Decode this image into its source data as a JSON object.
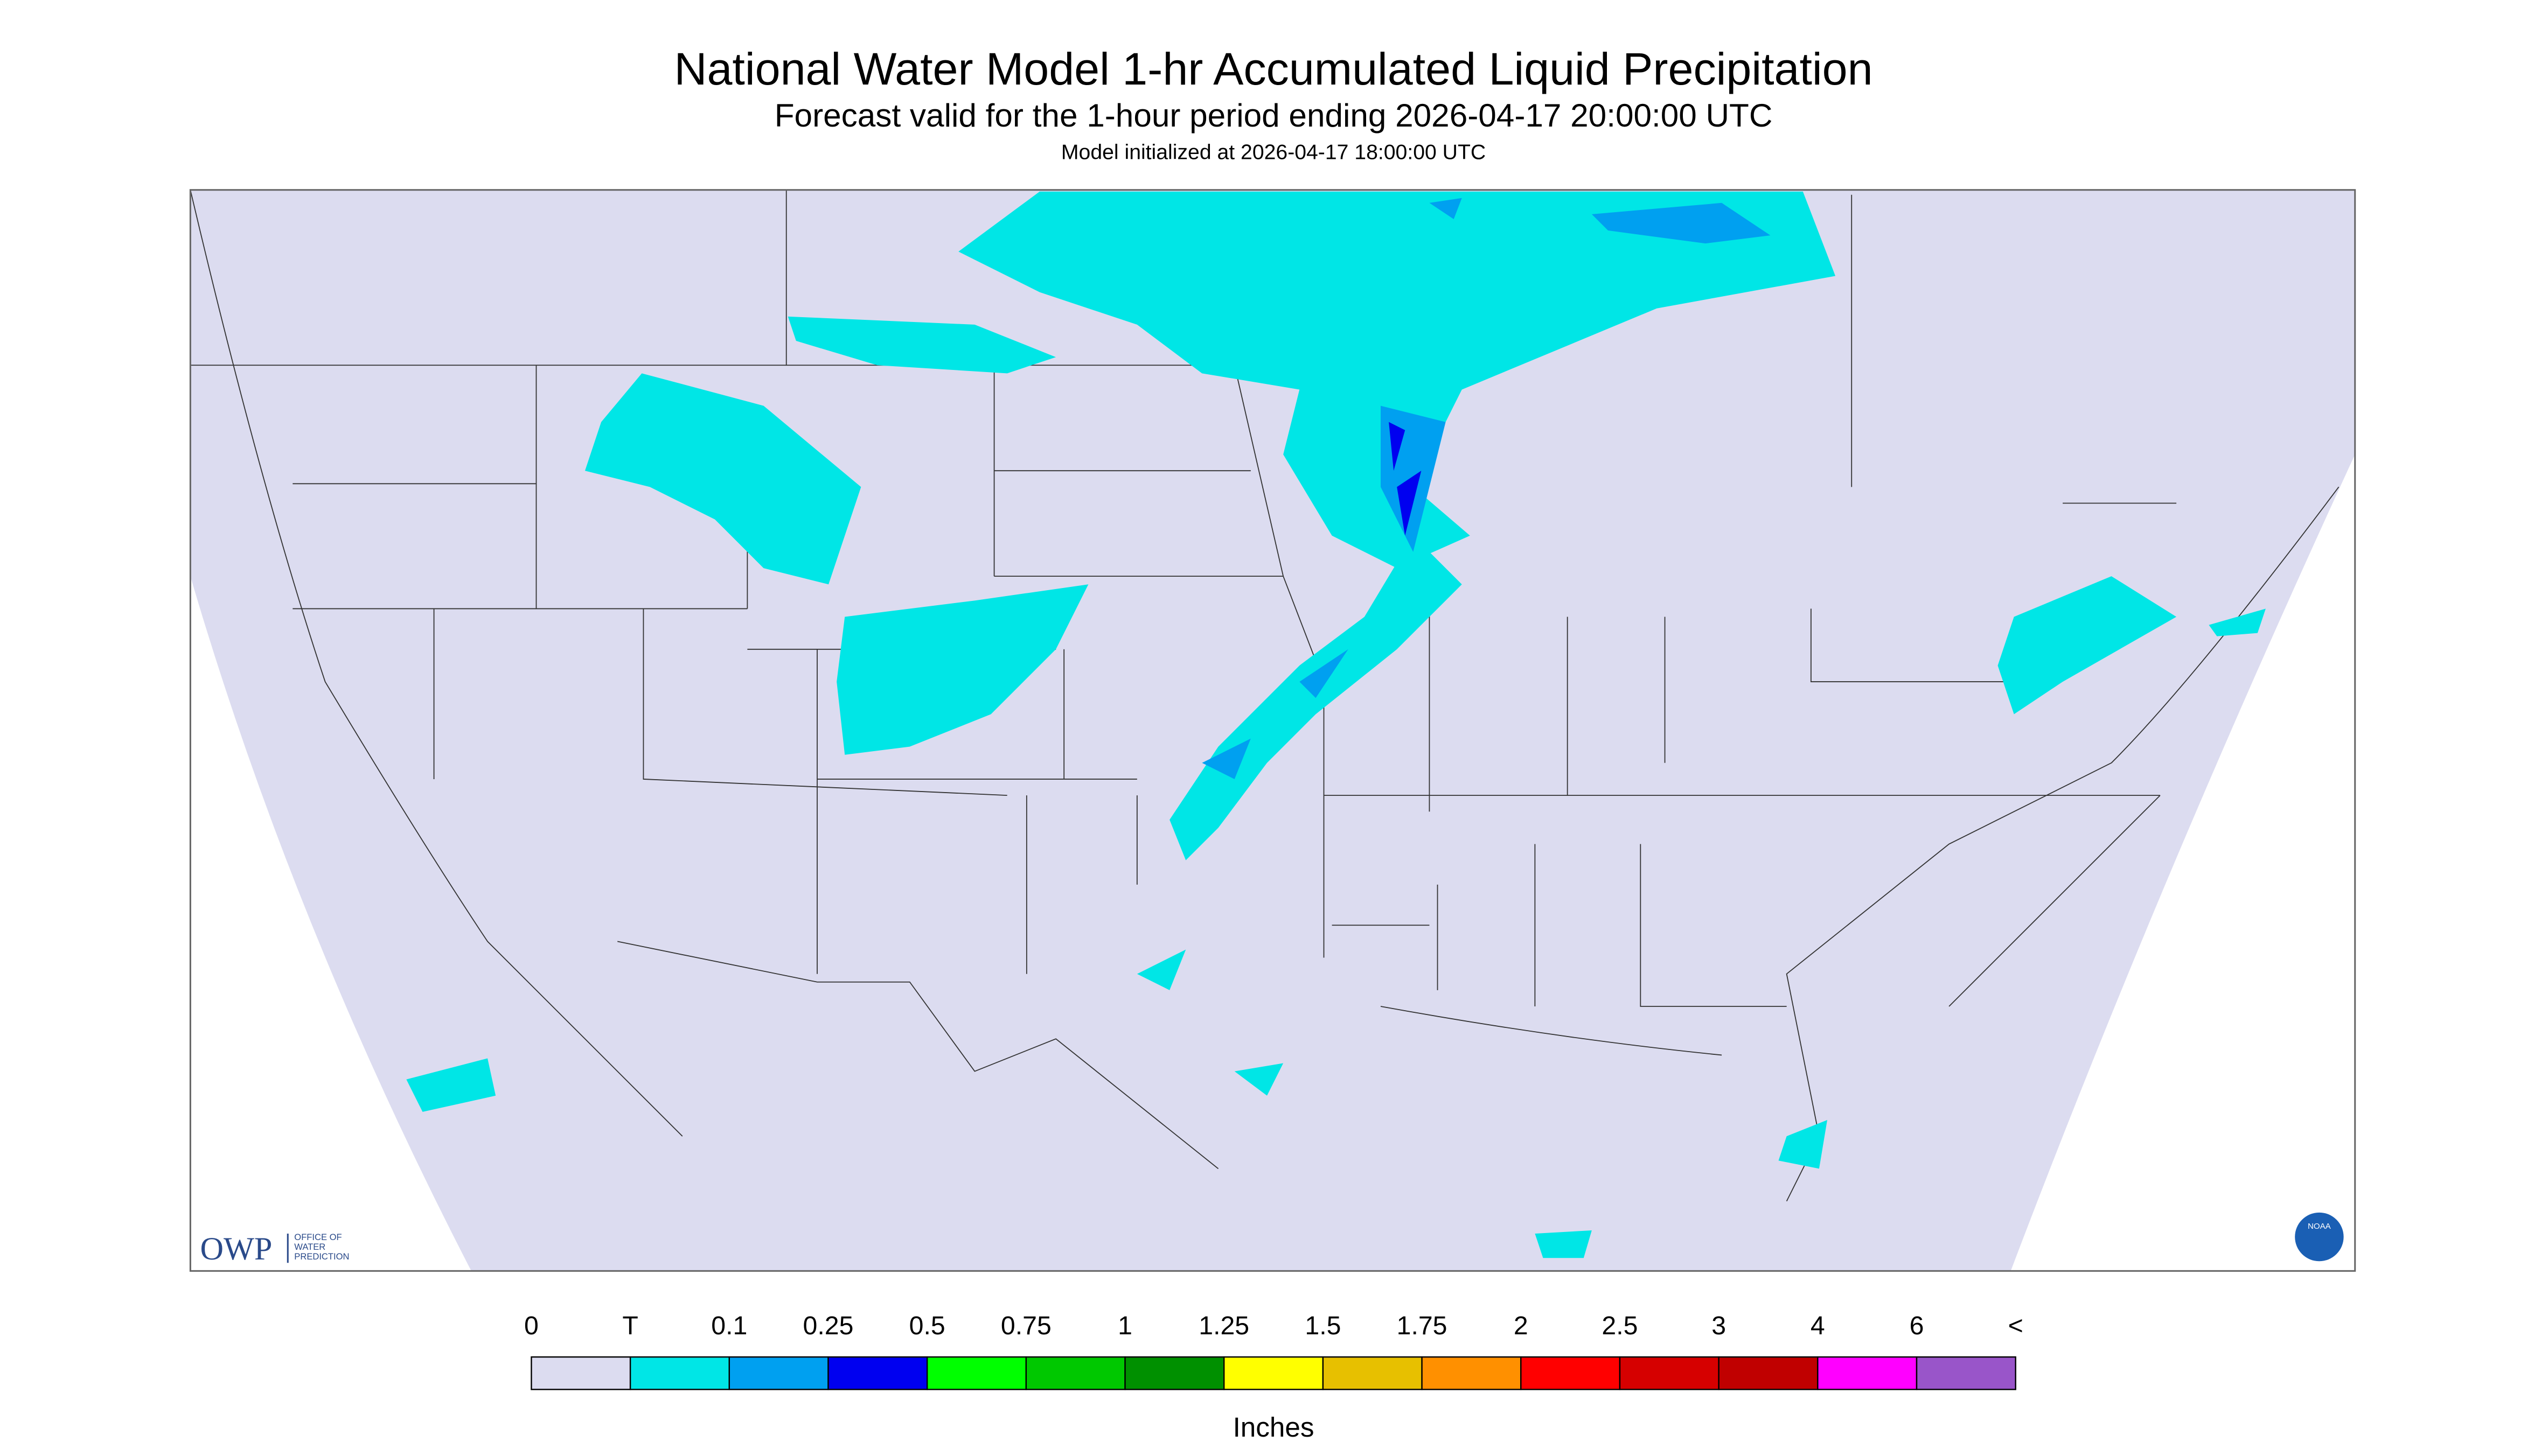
{
  "header": {
    "title": "National Water Model 1-hr Accumulated Liquid Precipitation",
    "subtitle": "Forecast valid for the 1-hour period ending 2026-04-17 20:00:00 UTC",
    "init": "Model initialized at 2026-04-17 18:00:00 UTC"
  },
  "logo": {
    "owp": "OWP",
    "office": [
      "OFFICE OF",
      "WATER",
      "PREDICTION"
    ],
    "noaa": "NOAA"
  },
  "legend": {
    "labels": [
      "0",
      "T",
      "0.1",
      "0.25",
      "0.5",
      "0.75",
      "1",
      "1.25",
      "1.5",
      "1.75",
      "2",
      "2.5",
      "3",
      "4",
      "6",
      "<"
    ],
    "colors": [
      "#dcdcf0",
      "#00e6e6",
      "#00a0f0",
      "#0000f0",
      "#00ff00",
      "#00c800",
      "#009000",
      "#ffff00",
      "#e7c000",
      "#ff9000",
      "#ff0000",
      "#d60000",
      "#c00000",
      "#ff00ff",
      "#9955c9"
    ],
    "unit": "Inches"
  }
}
